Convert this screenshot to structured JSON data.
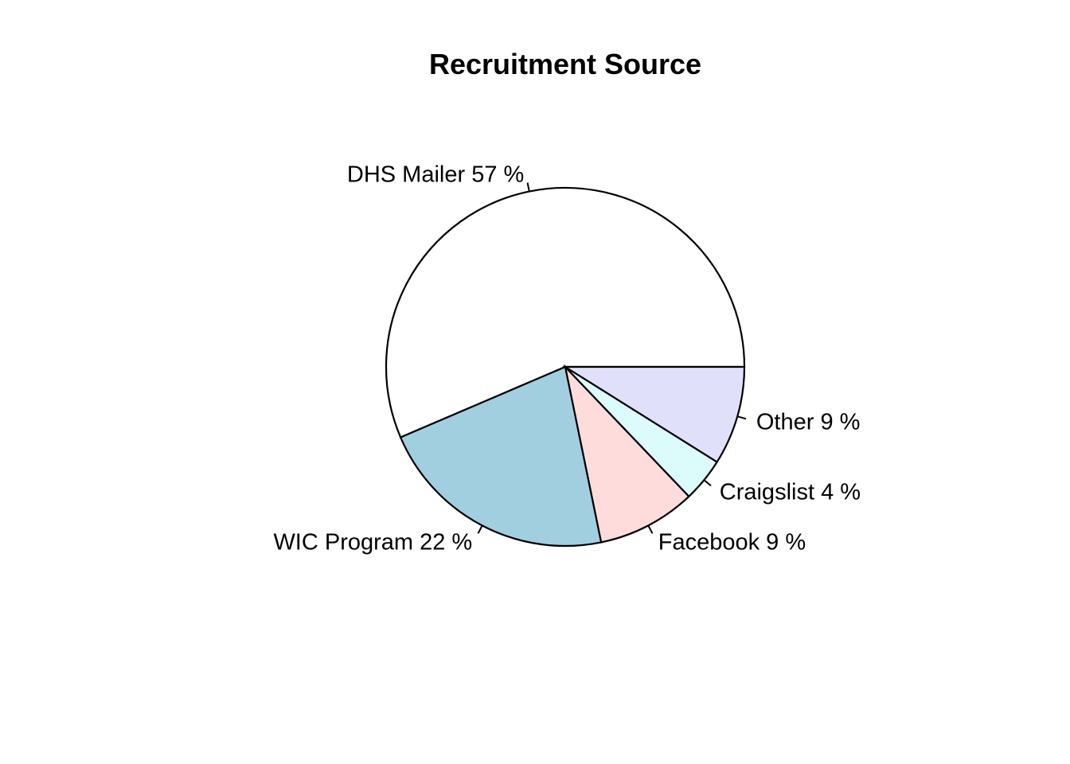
{
  "chart_data": {
    "type": "pie",
    "title": "Recruitment Source",
    "direction": "counterclockwise",
    "start": "3 o'clock",
    "slices": [
      {
        "label": "DHS Mailer 57 %",
        "name": "DHS Mailer",
        "value": 57,
        "color": "#ffffff"
      },
      {
        "label": "WIC Program 22 %",
        "name": "WIC Program",
        "value": 22,
        "color": "#a1cfe0"
      },
      {
        "label": "Facebook 9 %",
        "name": "Facebook",
        "value": 9,
        "color": "#ffdcdc"
      },
      {
        "label": "Craigslist 4 %",
        "name": "Craigslist",
        "value": 4,
        "color": "#dcfcfc"
      },
      {
        "label": "Other 9 %",
        "name": "Other",
        "value": 9,
        "color": "#e0e0fa"
      }
    ]
  }
}
